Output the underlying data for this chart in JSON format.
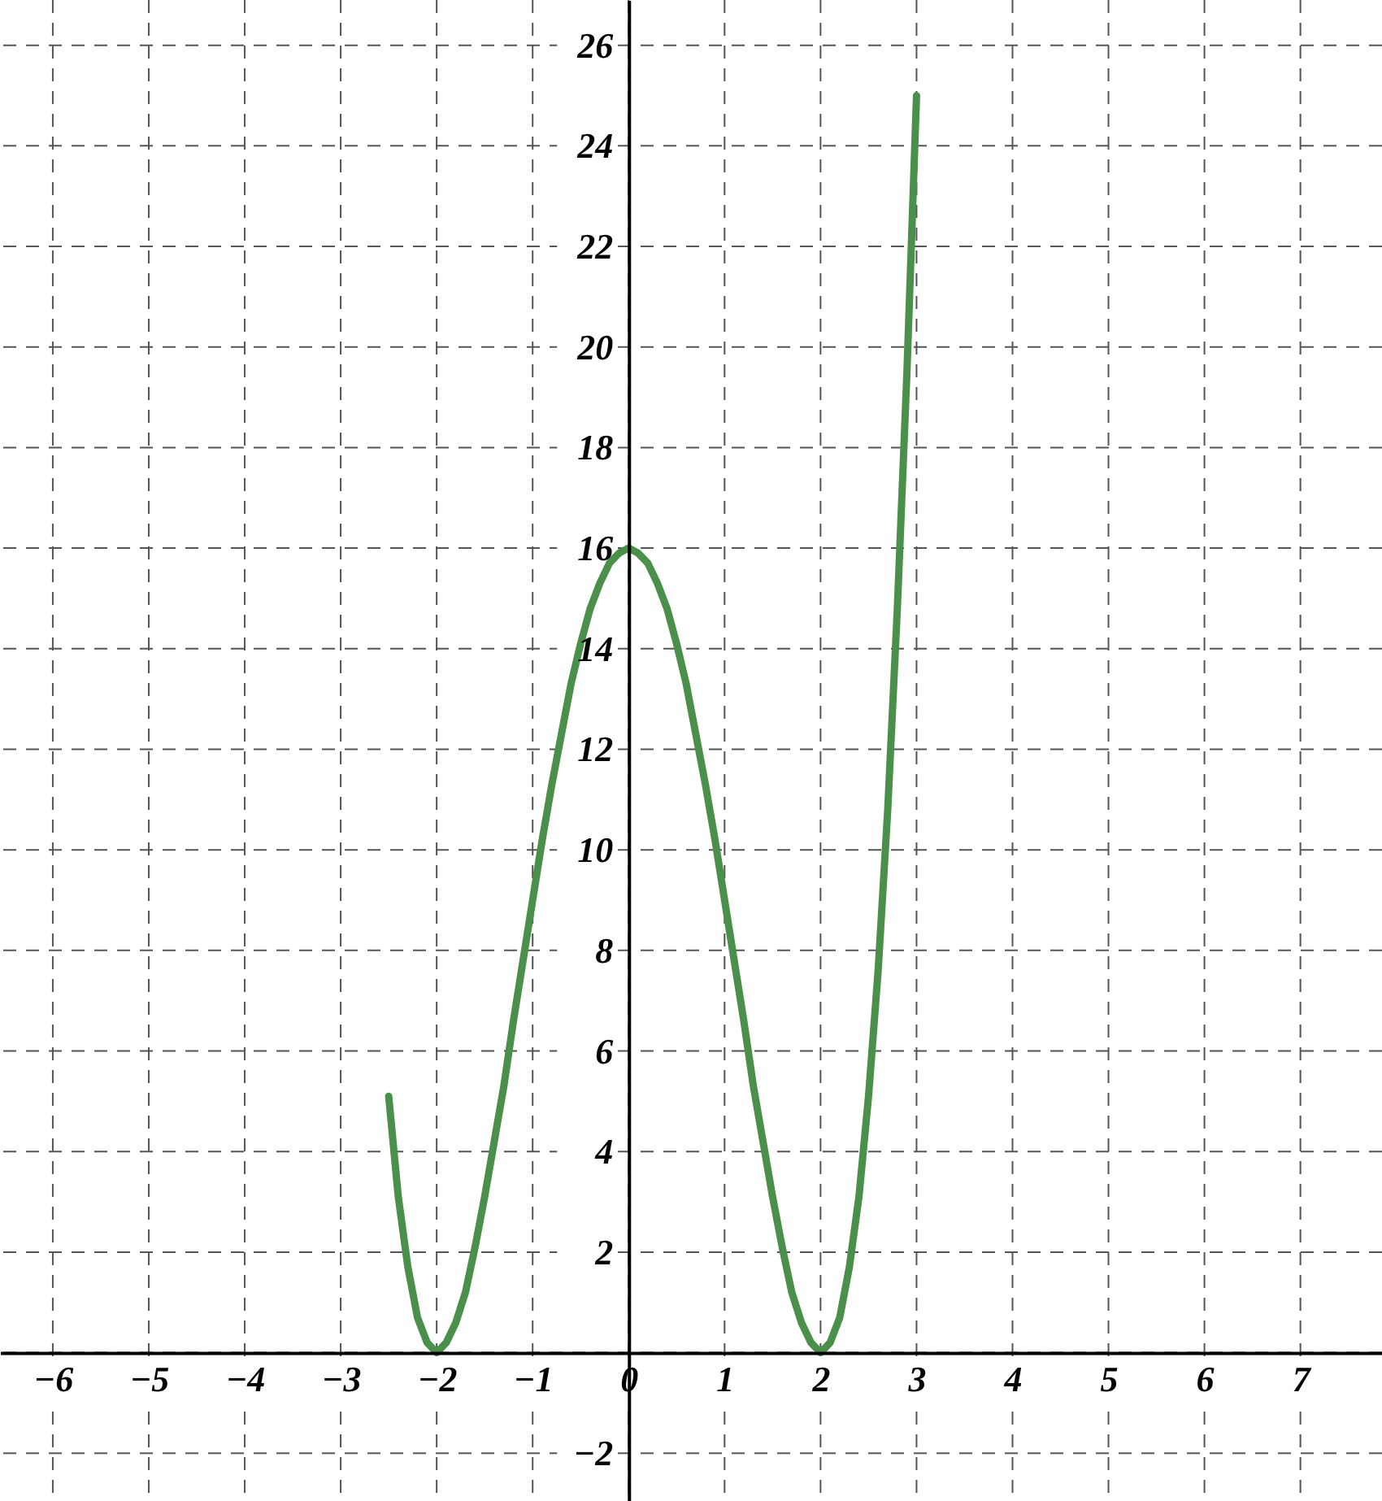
{
  "chart_data": {
    "type": "line",
    "x": [
      -2.5,
      -2.4,
      -2.3,
      -2.2,
      -2.1,
      -2.0,
      -1.9,
      -1.8,
      -1.7,
      -1.6,
      -1.5,
      -1.4,
      -1.3,
      -1.2,
      -1.1,
      -1.0,
      -0.9,
      -0.8,
      -0.7,
      -0.6,
      -0.5,
      -0.4,
      -0.3,
      -0.2,
      -0.1,
      0.0,
      0.1,
      0.2,
      0.3,
      0.4,
      0.5,
      0.6,
      0.7,
      0.8,
      0.9,
      1.0,
      1.1,
      1.2,
      1.3,
      1.4,
      1.5,
      1.6,
      1.7,
      1.8,
      1.9,
      2.0,
      2.1,
      2.2,
      2.3,
      2.4,
      2.5,
      2.6,
      2.7,
      2.8,
      2.9,
      3.0
    ],
    "series": [
      {
        "color": "#4a8f4a",
        "values": [
          5.1,
          3.1,
          1.7,
          0.7,
          0.2,
          0,
          0.2,
          0.6,
          1.2,
          2.1,
          3.1,
          4.2,
          5.3,
          6.6,
          7.8,
          9,
          10.2,
          11.3,
          12.3,
          13.3,
          14.1,
          14.8,
          15.3,
          15.7,
          15.9,
          16,
          15.9,
          15.7,
          15.3,
          14.8,
          14.1,
          13.3,
          12.3,
          11.3,
          10.2,
          9,
          7.8,
          6.6,
          5.3,
          4.2,
          3.1,
          2.1,
          1.2,
          0.6,
          0.2,
          0,
          0.2,
          0.7,
          1.7,
          3.1,
          5.1,
          7.6,
          10.8,
          14.8,
          19.5,
          25
        ]
      }
    ],
    "xlim": [
      -6.55,
      7.85
    ],
    "ylim": [
      -2.95,
      26.9
    ],
    "xticks": [
      -6,
      -5,
      -4,
      -3,
      -2,
      -1,
      0,
      1,
      2,
      3,
      4,
      5,
      6,
      7
    ],
    "yticks": [
      -2,
      {
        "value": 0,
        "label": null
      },
      2,
      4,
      6,
      8,
      10,
      12,
      14,
      16,
      18,
      20,
      22,
      24,
      26
    ],
    "grid": true,
    "line_style": "solid",
    "marker": "none"
  }
}
